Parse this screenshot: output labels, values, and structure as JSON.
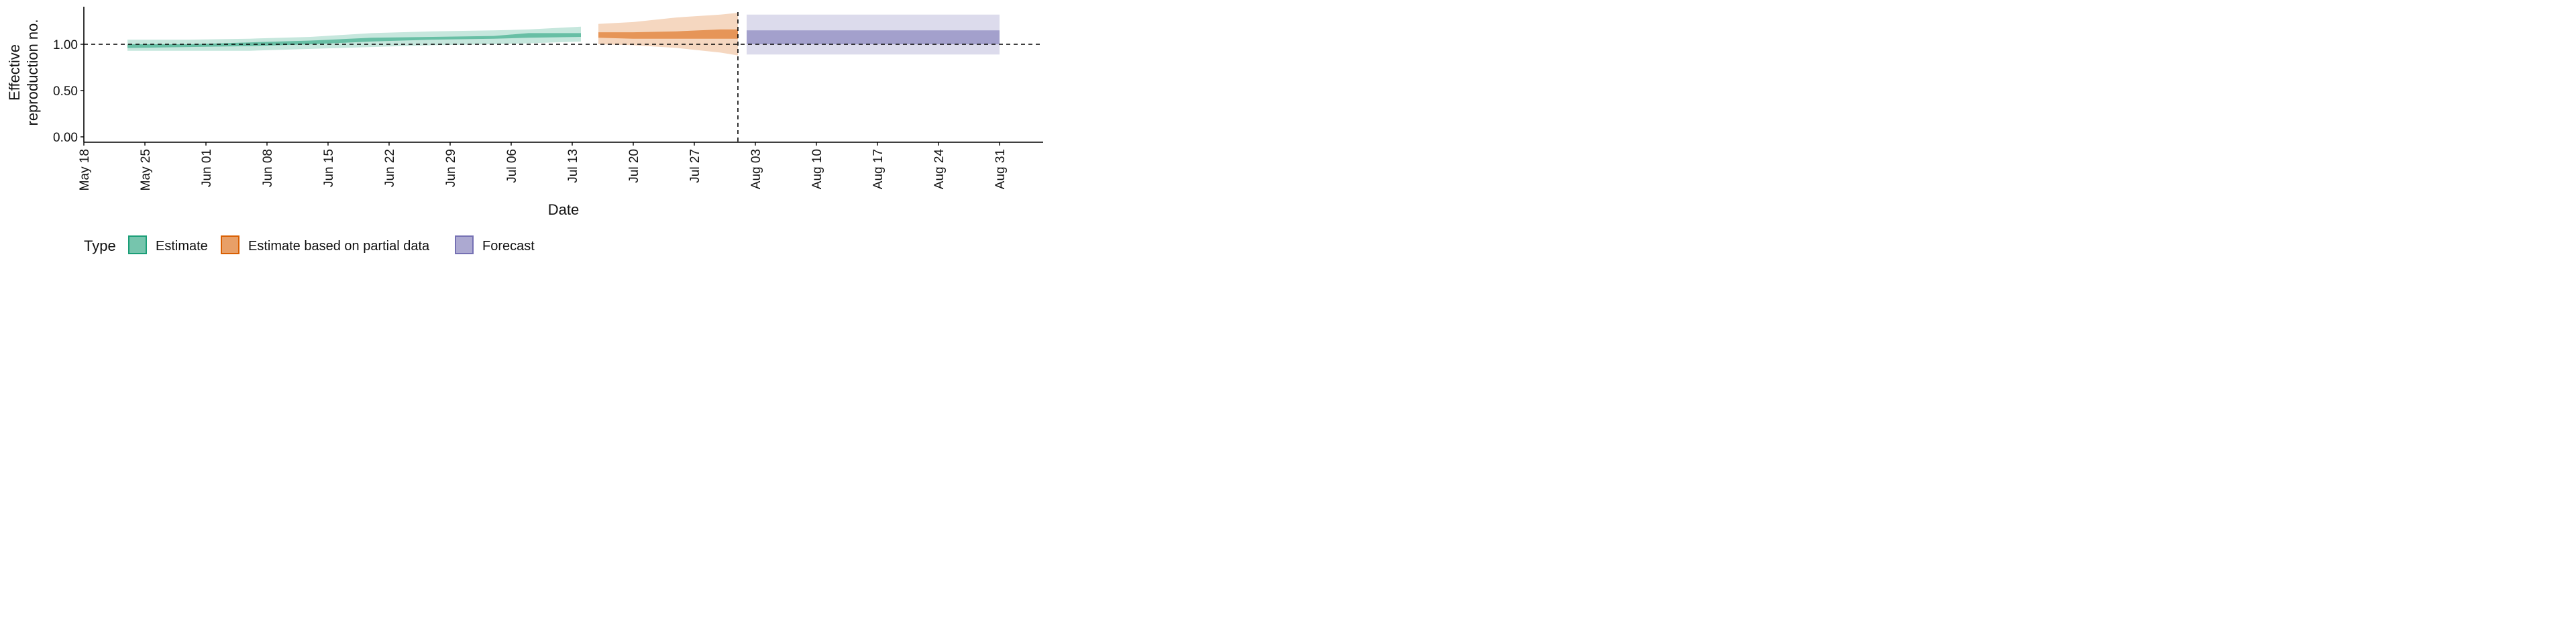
{
  "chart_data": {
    "type": "area",
    "xlabel": "Date",
    "ylabel": [
      "Effective",
      "reproduction no."
    ],
    "x_ticks": [
      "May 18",
      "May 25",
      "Jun 01",
      "Jun 08",
      "Jun 15",
      "Jun 22",
      "Jun 29",
      "Jul 06",
      "Jul 13",
      "Jul 20",
      "Jul 27",
      "Aug 03",
      "Aug 10",
      "Aug 17",
      "Aug 24",
      "Aug 31"
    ],
    "x_tick_dates": [
      "2020-05-18",
      "2020-05-25",
      "2020-06-01",
      "2020-06-08",
      "2020-06-15",
      "2020-06-22",
      "2020-06-29",
      "2020-07-06",
      "2020-07-13",
      "2020-07-20",
      "2020-07-27",
      "2020-08-03",
      "2020-08-10",
      "2020-08-17",
      "2020-08-24",
      "2020-08-31"
    ],
    "xlim": [
      "2020-05-18",
      "2020-09-12"
    ],
    "y_ticks": [
      "0.00",
      "0.50",
      "1.00"
    ],
    "y_tick_values": [
      0,
      0.5,
      1.0
    ],
    "ylim": [
      -0.05,
      1.4
    ],
    "reference_hline": 1.0,
    "reference_vline": "2020-08-01",
    "legend": {
      "title": "Type",
      "position": "bottom",
      "entries": [
        "Estimate",
        "Estimate based on partial data",
        "Forecast"
      ]
    },
    "series": [
      {
        "name": "Estimate",
        "color": "#1b9e77",
        "points": [
          {
            "x": "2020-05-23",
            "outer": [
              0.93,
              1.05
            ],
            "inner": [
              0.96,
              1.0
            ]
          },
          {
            "x": "2020-05-30",
            "outer": [
              0.93,
              1.05
            ],
            "inner": [
              0.97,
              1.0
            ]
          },
          {
            "x": "2020-06-06",
            "outer": [
              0.93,
              1.06
            ],
            "inner": [
              0.98,
              1.02
            ]
          },
          {
            "x": "2020-06-13",
            "outer": [
              0.95,
              1.08
            ],
            "inner": [
              1.0,
              1.04
            ]
          },
          {
            "x": "2020-06-20",
            "outer": [
              0.97,
              1.12
            ],
            "inner": [
              1.03,
              1.07
            ]
          },
          {
            "x": "2020-06-27",
            "outer": [
              0.99,
              1.14
            ],
            "inner": [
              1.05,
              1.08
            ]
          },
          {
            "x": "2020-07-04",
            "outer": [
              1.0,
              1.15
            ],
            "inner": [
              1.06,
              1.09
            ]
          },
          {
            "x": "2020-07-08",
            "outer": [
              1.01,
              1.16
            ],
            "inner": [
              1.07,
              1.12
            ]
          },
          {
            "x": "2020-07-14",
            "outer": [
              1.03,
              1.19
            ],
            "inner": [
              1.08,
              1.12
            ]
          }
        ]
      },
      {
        "name": "Estimate based on partial data",
        "color": "#d95f02",
        "points": [
          {
            "x": "2020-07-16",
            "outer": [
              1.0,
              1.22
            ],
            "inner": [
              1.07,
              1.13
            ]
          },
          {
            "x": "2020-07-20",
            "outer": [
              0.99,
              1.24
            ],
            "inner": [
              1.06,
              1.13
            ]
          },
          {
            "x": "2020-07-25",
            "outer": [
              0.96,
              1.29
            ],
            "inner": [
              1.06,
              1.14
            ]
          },
          {
            "x": "2020-07-30",
            "outer": [
              0.91,
              1.32
            ],
            "inner": [
              1.06,
              1.16
            ]
          },
          {
            "x": "2020-08-01",
            "outer": [
              0.88,
              1.34
            ],
            "inner": [
              1.06,
              1.16
            ]
          }
        ]
      },
      {
        "name": "Forecast",
        "color": "#7570b3",
        "points": [
          {
            "x": "2020-08-02",
            "outer": [
              0.89,
              1.32
            ],
            "inner": [
              1.0,
              1.15
            ]
          },
          {
            "x": "2020-08-31",
            "outer": [
              0.89,
              1.32
            ],
            "inner": [
              1.0,
              1.15
            ]
          }
        ]
      }
    ]
  }
}
